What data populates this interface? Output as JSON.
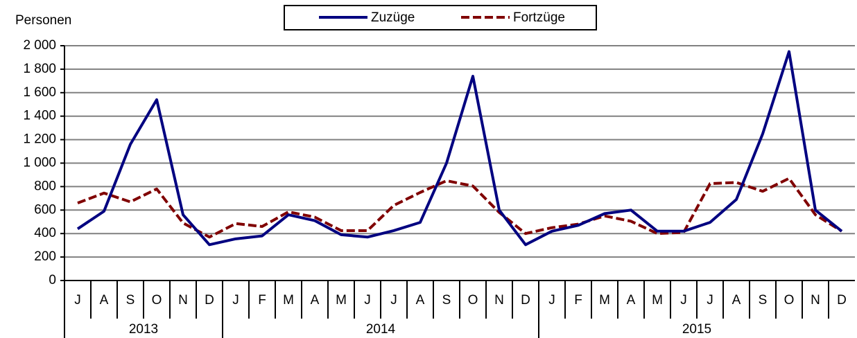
{
  "chart_data": {
    "type": "line",
    "y_label": "Personen",
    "categories": [
      "J",
      "A",
      "S",
      "O",
      "N",
      "D",
      "J",
      "F",
      "M",
      "A",
      "M",
      "J",
      "J",
      "A",
      "S",
      "O",
      "N",
      "D",
      "J",
      "F",
      "M",
      "A",
      "M",
      "J",
      "J",
      "A",
      "S",
      "O",
      "N",
      "D"
    ],
    "category_groups": [
      {
        "label": "2013",
        "size": 6
      },
      {
        "label": "2014",
        "size": 12
      },
      {
        "label": "2015",
        "size": 12
      }
    ],
    "series": [
      {
        "name": "Zuzüge",
        "color": "#000080",
        "dashed": false,
        "values": [
          440,
          590,
          1160,
          1540,
          560,
          305,
          355,
          380,
          560,
          510,
          390,
          370,
          425,
          495,
          1000,
          1740,
          600,
          305,
          420,
          470,
          570,
          600,
          420,
          420,
          495,
          690,
          1250,
          1950,
          600,
          420
        ]
      },
      {
        "name": "Fortzüge",
        "color": "#800000",
        "dashed": true,
        "values": [
          660,
          745,
          670,
          780,
          490,
          370,
          485,
          460,
          585,
          540,
          425,
          425,
          640,
          750,
          850,
          805,
          580,
          400,
          450,
          480,
          550,
          505,
          400,
          410,
          825,
          835,
          760,
          870,
          560,
          420
        ]
      }
    ],
    "ylim": [
      0,
      2000
    ],
    "yticks": [
      0,
      200,
      400,
      600,
      800,
      {
        "value": 1000,
        "label": "1 000"
      },
      {
        "value": 1200,
        "label": "1 200"
      },
      {
        "value": 1400,
        "label": "1 400"
      },
      {
        "value": 1600,
        "label": "1 600"
      },
      {
        "value": 1800,
        "label": "1 800"
      },
      {
        "value": 2000,
        "label": "2 000"
      }
    ],
    "grid": true,
    "legend": "top"
  }
}
